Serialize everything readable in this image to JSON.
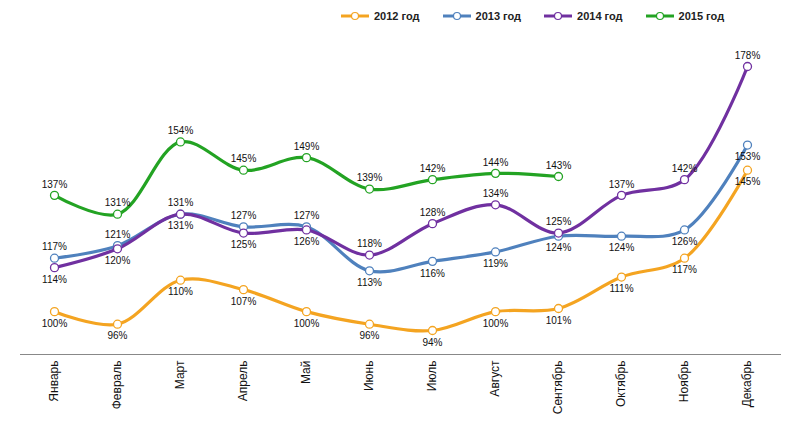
{
  "chart_data": {
    "type": "line",
    "categories": [
      "Январь",
      "Февраль",
      "Март",
      "Апрель",
      "Май",
      "Июнь",
      "Июль",
      "Август",
      "Сентябрь",
      "Октябрь",
      "Ноябрь",
      "Декабрь"
    ],
    "series": [
      {
        "name": "2012 год",
        "color": "#f4a421",
        "values": [
          100,
          96,
          110,
          107,
          100,
          96,
          94,
          100,
          101,
          111,
          117,
          145
        ],
        "value_labels": [
          "100%",
          "96%",
          "110%",
          "107%",
          "100%",
          "96%",
          "94%",
          "100%",
          "101%",
          "111%",
          "117%",
          "145%"
        ]
      },
      {
        "name": "2013 год",
        "color": "#4f81bd",
        "values": [
          117,
          121,
          131,
          127,
          127,
          113,
          116,
          119,
          124,
          124,
          126,
          153
        ],
        "value_labels": [
          "117%",
          "121%",
          "131%",
          "127%",
          "127%",
          "113%",
          "116%",
          "119%",
          "124%",
          "124%",
          "126%",
          "153%"
        ]
      },
      {
        "name": "2014 год",
        "color": "#7030a0",
        "values": [
          114,
          120,
          131,
          125,
          126,
          118,
          128,
          134,
          125,
          137,
          142,
          178
        ],
        "value_labels": [
          "114%",
          "120%",
          "131%",
          "125%",
          "126%",
          "118%",
          "128%",
          "134%",
          "125%",
          "137%",
          "142%",
          "178%"
        ]
      },
      {
        "name": "2015 год",
        "color": "#23a323",
        "values": [
          137,
          131,
          154,
          145,
          149,
          139,
          142,
          144,
          143,
          null,
          null,
          null
        ],
        "value_labels": [
          "137%",
          "131%",
          "154%",
          "145%",
          "149%",
          "139%",
          "142%",
          "144%",
          "143%",
          null,
          null,
          null
        ]
      }
    ],
    "data_labels": true,
    "tick_labels": "x",
    "grid": false,
    "legend": "top",
    "marker": "circle",
    "line_style": "solid"
  }
}
